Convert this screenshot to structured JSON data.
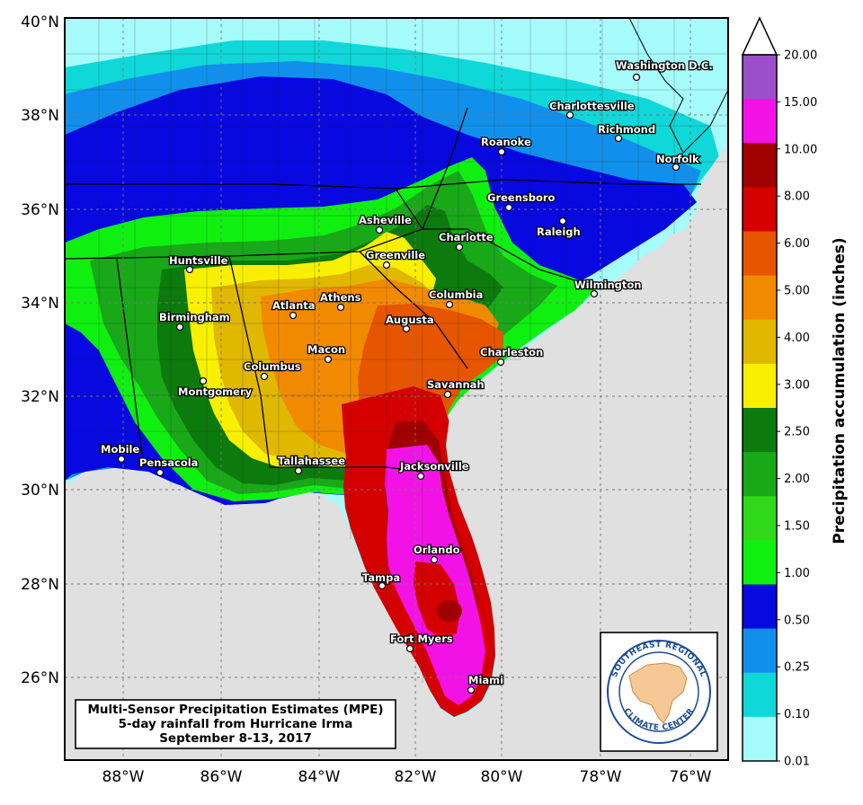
{
  "map": {
    "title_lines": [
      "Multi-Sensor Precipitation Estimates (MPE)",
      "5-day rainfall from Hurricane Irma",
      "September 8-13, 2017"
    ],
    "latitude_labels": [
      "40°N",
      "38°N",
      "36°N",
      "34°N",
      "32°N",
      "30°N",
      "28°N",
      "26°N"
    ],
    "longitude_labels": [
      "88°W",
      "86°W",
      "84°W",
      "82°W",
      "80°W",
      "78°W",
      "76°W"
    ],
    "cities": [
      {
        "name": "Washington D.C."
      },
      {
        "name": "Charlottesville"
      },
      {
        "name": "Richmond"
      },
      {
        "name": "Norfolk"
      },
      {
        "name": "Roanoke"
      },
      {
        "name": "Greensboro"
      },
      {
        "name": "Raleigh"
      },
      {
        "name": "Asheville"
      },
      {
        "name": "Charlotte"
      },
      {
        "name": "Greenville"
      },
      {
        "name": "Huntsville"
      },
      {
        "name": "Wilmington"
      },
      {
        "name": "Columbia"
      },
      {
        "name": "Athens"
      },
      {
        "name": "Atlanta"
      },
      {
        "name": "Birmingham"
      },
      {
        "name": "Augusta"
      },
      {
        "name": "Macon"
      },
      {
        "name": "Charleston"
      },
      {
        "name": "Columbus"
      },
      {
        "name": "Savannah"
      },
      {
        "name": "Montgomery"
      },
      {
        "name": "Mobile"
      },
      {
        "name": "Pensacola"
      },
      {
        "name": "Tallahassee"
      },
      {
        "name": "Jacksonville"
      },
      {
        "name": "Orlando"
      },
      {
        "name": "Tampa"
      },
      {
        "name": "Fort Myers"
      },
      {
        "name": "Miami"
      }
    ],
    "colorbar": {
      "title": "Precipitation accumulation (inches)",
      "ticks": [
        "20.00",
        "15.00",
        "10.00",
        "8.00",
        "6.00",
        "5.00",
        "4.00",
        "3.00",
        "2.50",
        "2.00",
        "1.50",
        "1.00",
        "0.50",
        "0.25",
        "0.10",
        "0.01"
      ],
      "colors": [
        "#9b4fc9",
        "#f312e6",
        "#a00000",
        "#d40000",
        "#e65500",
        "#f28a00",
        "#e0b800",
        "#f8f000",
        "#0c7a0c",
        "#18a818",
        "#30d81a",
        "#10f010",
        "#0808e0",
        "#1090ec",
        "#10d8d8",
        "#a6fbfb"
      ]
    },
    "colors": {
      "background": "#e0e0e0",
      "precip_classes": {
        "0.01": "#a6fbfb",
        "0.10": "#10d8d8",
        "0.25": "#1090ec",
        "0.50": "#0808e0",
        "1.00": "#10f010",
        "1.50": "#30d81a",
        "2.00": "#18a818",
        "2.50": "#0c7a0c",
        "3.00": "#f8f000",
        "4.00": "#e0b800",
        "5.00": "#f28a00",
        "6.00": "#e65500",
        "8.00": "#d40000",
        "10.00": "#a00000",
        "15.00": "#f312e6"
      }
    },
    "logo": {
      "top_text": "SOUTHEAST REGIONAL",
      "bottom_text": "CLIMATE CENTER"
    }
  }
}
